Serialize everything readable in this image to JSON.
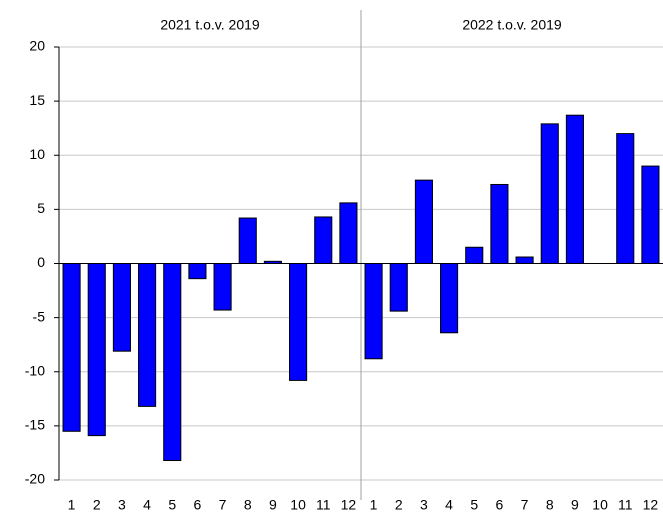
{
  "chart_data": {
    "type": "bar",
    "groups": [
      "2021 t.o.v. 2019",
      "2022 t.o.v. 2019"
    ],
    "categories": [
      "1",
      "2",
      "3",
      "4",
      "5",
      "6",
      "7",
      "8",
      "9",
      "10",
      "11",
      "12",
      "1",
      "2",
      "3",
      "4",
      "5",
      "6",
      "7",
      "8",
      "9",
      "10",
      "11",
      "12"
    ],
    "values": [
      -15.5,
      -15.9,
      -8.1,
      -13.2,
      -18.2,
      -1.4,
      -4.3,
      4.2,
      0.2,
      -10.8,
      4.3,
      5.6,
      -8.8,
      -4.4,
      7.7,
      -6.4,
      1.5,
      7.3,
      0.6,
      12.9,
      13.7,
      null,
      12.0,
      9.0
    ],
    "color": "#0000ff",
    "ylim": [
      -20,
      20
    ],
    "yticks": [
      -20,
      -15,
      -10,
      -5,
      0,
      5,
      10,
      15,
      20
    ],
    "grid": true
  }
}
